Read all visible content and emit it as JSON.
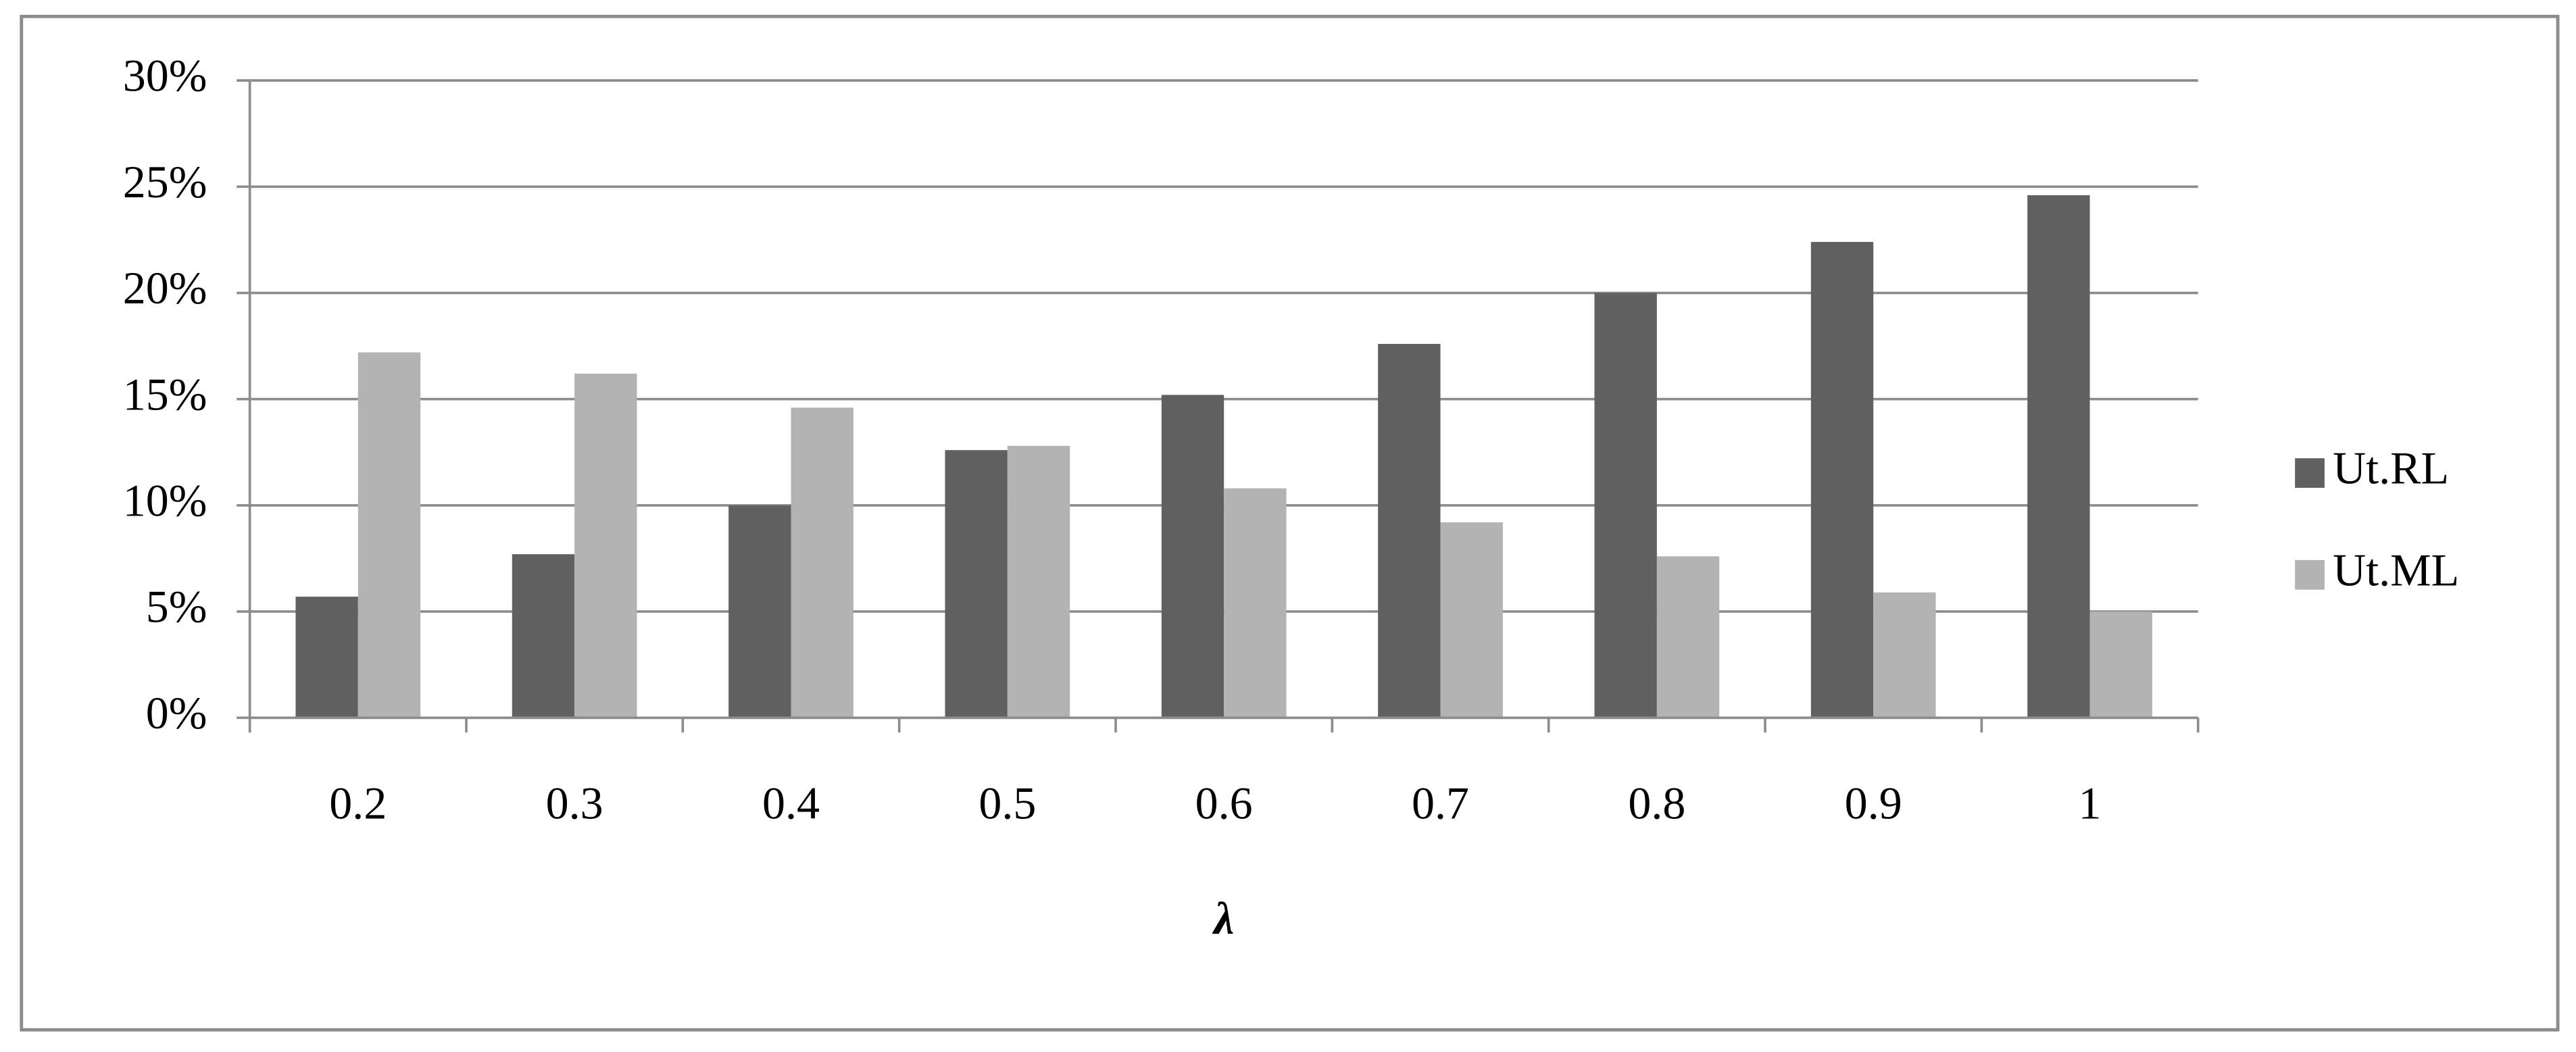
{
  "chart_data": {
    "type": "bar",
    "x_label": "λ",
    "categories": [
      "0.2",
      "0.3",
      "0.4",
      "0.5",
      "0.6",
      "0.7",
      "0.8",
      "0.9",
      "1"
    ],
    "series": [
      {
        "name": "Ut.RL",
        "color": "#606060",
        "values": [
          5.7,
          7.7,
          10.0,
          12.6,
          15.2,
          17.6,
          20.0,
          22.4,
          24.6
        ]
      },
      {
        "name": "Ut.ML",
        "color": "#b3b3b3",
        "values": [
          17.2,
          16.2,
          14.6,
          12.8,
          10.8,
          9.2,
          7.6,
          5.9,
          5.0
        ]
      }
    ],
    "ylim": [
      0,
      30
    ],
    "yticks": [
      {
        "value": 0,
        "label": "0%"
      },
      {
        "value": 5,
        "label": "5%"
      },
      {
        "value": 10,
        "label": "10%"
      },
      {
        "value": 15,
        "label": "15%"
      },
      {
        "value": 20,
        "label": "20%"
      },
      {
        "value": 25,
        "label": "25%"
      },
      {
        "value": 30,
        "label": "30%"
      }
    ],
    "grid": true,
    "legend": "right"
  }
}
